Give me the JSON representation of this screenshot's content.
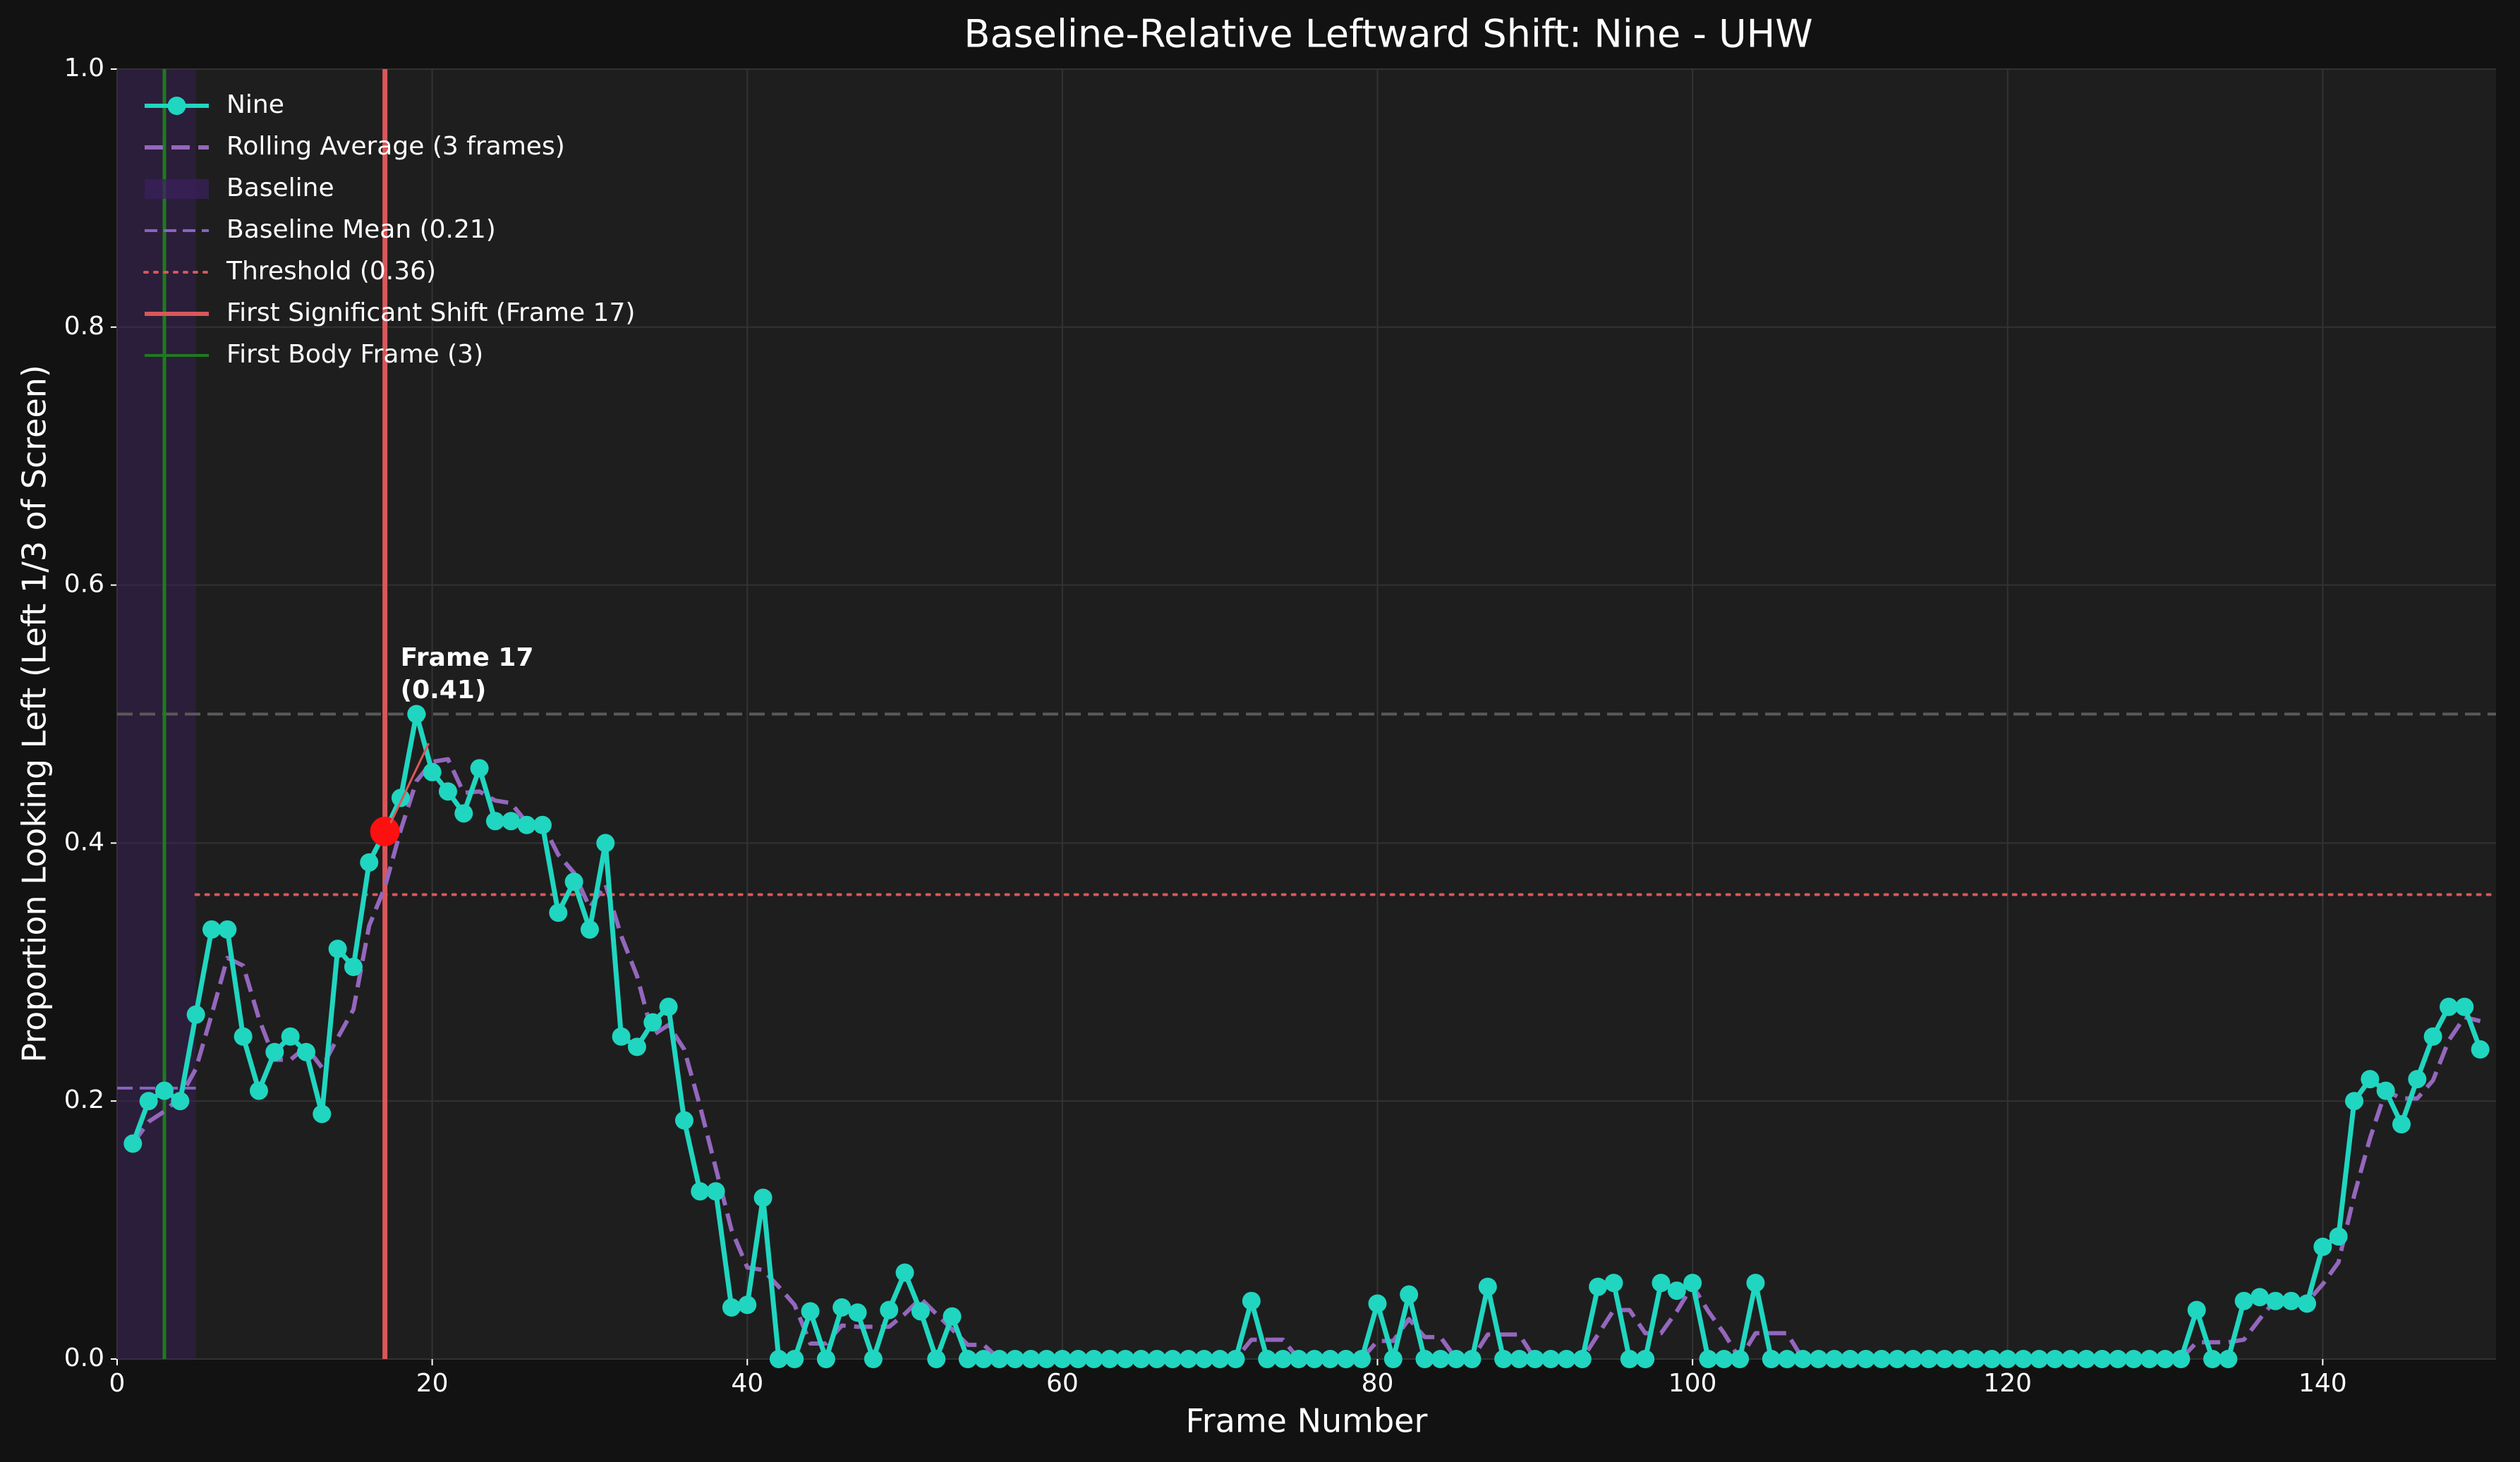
{
  "chart_data": {
    "type": "line",
    "title": "Baseline-Relative Leftward Shift: Nine - UHW",
    "x_label": "Frame Number",
    "y_label": "Proportion Looking Left (Left 1/3 of Screen)",
    "x": [
      1,
      2,
      3,
      4,
      5,
      6,
      7,
      8,
      9,
      10,
      11,
      12,
      13,
      14,
      15,
      16,
      17,
      18,
      19,
      20,
      21,
      22,
      23,
      24,
      25,
      26,
      27,
      28,
      29,
      30,
      31,
      32,
      33,
      34,
      35,
      36,
      37,
      38,
      39,
      40,
      41,
      42,
      43,
      44,
      45,
      46,
      47,
      48,
      49,
      50,
      51,
      52,
      53,
      54,
      55,
      56,
      57,
      58,
      59,
      60,
      61,
      62,
      63,
      64,
      65,
      66,
      67,
      68,
      69,
      70,
      71,
      72,
      73,
      74,
      75,
      76,
      77,
      78,
      79,
      80,
      81,
      82,
      83,
      84,
      85,
      86,
      87,
      88,
      89,
      90,
      91,
      92,
      93,
      94,
      95,
      96,
      97,
      98,
      99,
      100,
      101,
      102,
      103,
      104,
      105,
      106,
      107,
      108,
      109,
      110,
      111,
      112,
      113,
      114,
      115,
      116,
      117,
      118,
      119,
      120,
      121,
      122,
      123,
      124,
      125,
      126,
      127,
      128,
      129,
      130,
      131,
      132,
      133,
      134,
      135,
      136,
      137,
      138,
      139,
      140,
      141,
      142,
      143,
      144,
      145,
      146,
      147,
      148,
      149,
      150
    ],
    "series": [
      {
        "name": "Nine",
        "color": "#20d6c0",
        "style": "line-marker",
        "values": [
          0.167,
          0.2,
          0.208,
          0.2,
          0.267,
          0.333,
          0.333,
          0.25,
          0.208,
          0.238,
          0.25,
          0.238,
          0.19,
          0.318,
          0.304,
          0.385,
          0.409,
          0.435,
          0.5,
          0.455,
          0.44,
          0.423,
          0.458,
          0.417,
          0.417,
          0.414,
          0.414,
          0.346,
          0.37,
          0.333,
          0.4,
          0.25,
          0.242,
          0.261,
          0.273,
          0.185,
          0.13,
          0.13,
          0.04,
          0.042,
          0.125,
          0,
          0,
          0.037,
          0,
          0.04,
          0.036,
          0,
          0.038,
          0.067,
          0.037,
          0,
          0.033,
          0,
          0,
          0,
          0,
          0,
          0,
          0,
          0,
          0,
          0,
          0,
          0,
          0,
          0,
          0,
          0,
          0,
          0,
          0.045,
          0,
          0,
          0,
          0,
          0,
          0,
          0,
          0.043,
          0,
          0.05,
          0,
          0,
          0,
          0,
          0.056,
          0,
          0,
          0,
          0,
          0,
          0,
          0.056,
          0.059,
          0,
          0,
          0.059,
          0.053,
          0.059,
          0,
          0,
          0,
          0.059,
          0,
          0,
          0,
          0,
          0,
          0,
          0,
          0,
          0,
          0,
          0,
          0,
          0,
          0,
          0,
          0,
          0,
          0,
          0,
          0,
          0,
          0,
          0,
          0,
          0,
          0,
          0,
          0.038,
          0,
          0,
          0.045,
          0.048,
          0.045,
          0.045,
          0.043,
          0.087,
          0.095,
          0.2,
          0.217,
          0.208,
          0.182,
          0.217,
          0.25,
          0.273,
          0.273,
          0.24
        ]
      },
      {
        "name": "Rolling Average (3 frames)",
        "color": "#9467bd",
        "style": "dashed",
        "values": [
          0.167,
          0.184,
          0.192,
          0.203,
          0.225,
          0.267,
          0.311,
          0.305,
          0.264,
          0.232,
          0.232,
          0.242,
          0.226,
          0.249,
          0.271,
          0.336,
          0.366,
          0.41,
          0.448,
          0.463,
          0.465,
          0.439,
          0.44,
          0.433,
          0.431,
          0.416,
          0.415,
          0.391,
          0.377,
          0.35,
          0.368,
          0.328,
          0.297,
          0.251,
          0.259,
          0.24,
          0.196,
          0.148,
          0.1,
          0.071,
          0.069,
          0.056,
          0.042,
          0.012,
          0.012,
          0.026,
          0.025,
          0.025,
          0.025,
          0.035,
          0.047,
          0.035,
          0.023,
          0.011,
          0.011,
          0,
          0,
          0,
          0,
          0,
          0,
          0,
          0,
          0,
          0,
          0,
          0,
          0,
          0,
          0,
          0,
          0.015,
          0.015,
          0.015,
          0,
          0,
          0,
          0,
          0,
          0.014,
          0.014,
          0.031,
          0.017,
          0.017,
          0,
          0,
          0.019,
          0.019,
          0.019,
          0,
          0,
          0,
          0,
          0.019,
          0.038,
          0.038,
          0.02,
          0.02,
          0.037,
          0.057,
          0.037,
          0.02,
          0,
          0.02,
          0.02,
          0.02,
          0,
          0,
          0,
          0,
          0,
          0,
          0,
          0,
          0,
          0,
          0,
          0,
          0,
          0,
          0,
          0,
          0,
          0,
          0,
          0,
          0,
          0,
          0,
          0,
          0,
          0.013,
          0.013,
          0.013,
          0.015,
          0.031,
          0.046,
          0.046,
          0.044,
          0.058,
          0.075,
          0.127,
          0.171,
          0.208,
          0.202,
          0.202,
          0.216,
          0.247,
          0.265,
          0.262
        ]
      }
    ],
    "baseline": {
      "name": "Baseline",
      "range": [
        0,
        5
      ],
      "color": "#3c1f5e"
    },
    "baseline_mean": {
      "name": "Baseline Mean (0.21)",
      "value": 0.21,
      "range": [
        0,
        5
      ],
      "color": "#8a63c0"
    },
    "threshold": {
      "name": "Threshold (0.36)",
      "value": 0.36,
      "start": 5,
      "color": "#d9575a"
    },
    "reference_line": {
      "value": 0.5,
      "color": "#5a5a5a"
    },
    "first_shift": {
      "name": "First Significant Shift (Frame 17)",
      "frame": 17,
      "value": 0.409,
      "color": "#d9575a",
      "marker_color": "#ff1010"
    },
    "first_body": {
      "name": "First Body Frame (3)",
      "frame": 3,
      "color": "#1f7a1f"
    },
    "annotation": [
      "Frame 17",
      "(0.41)"
    ],
    "xlim": [
      0,
      151
    ],
    "ylim": [
      0,
      1
    ],
    "xticks": [
      0,
      20,
      40,
      60,
      80,
      100,
      120,
      140
    ],
    "yticks": [
      {
        "value": 0,
        "label": "0.0"
      },
      {
        "value": 0.2,
        "label": "0.2"
      },
      {
        "value": 0.4,
        "label": "0.4"
      },
      {
        "value": 0.6,
        "label": "0.6"
      },
      {
        "value": 0.8,
        "label": "0.8"
      },
      {
        "value": 1,
        "label": "1.0"
      }
    ],
    "grid": true,
    "legend": "upper left"
  }
}
